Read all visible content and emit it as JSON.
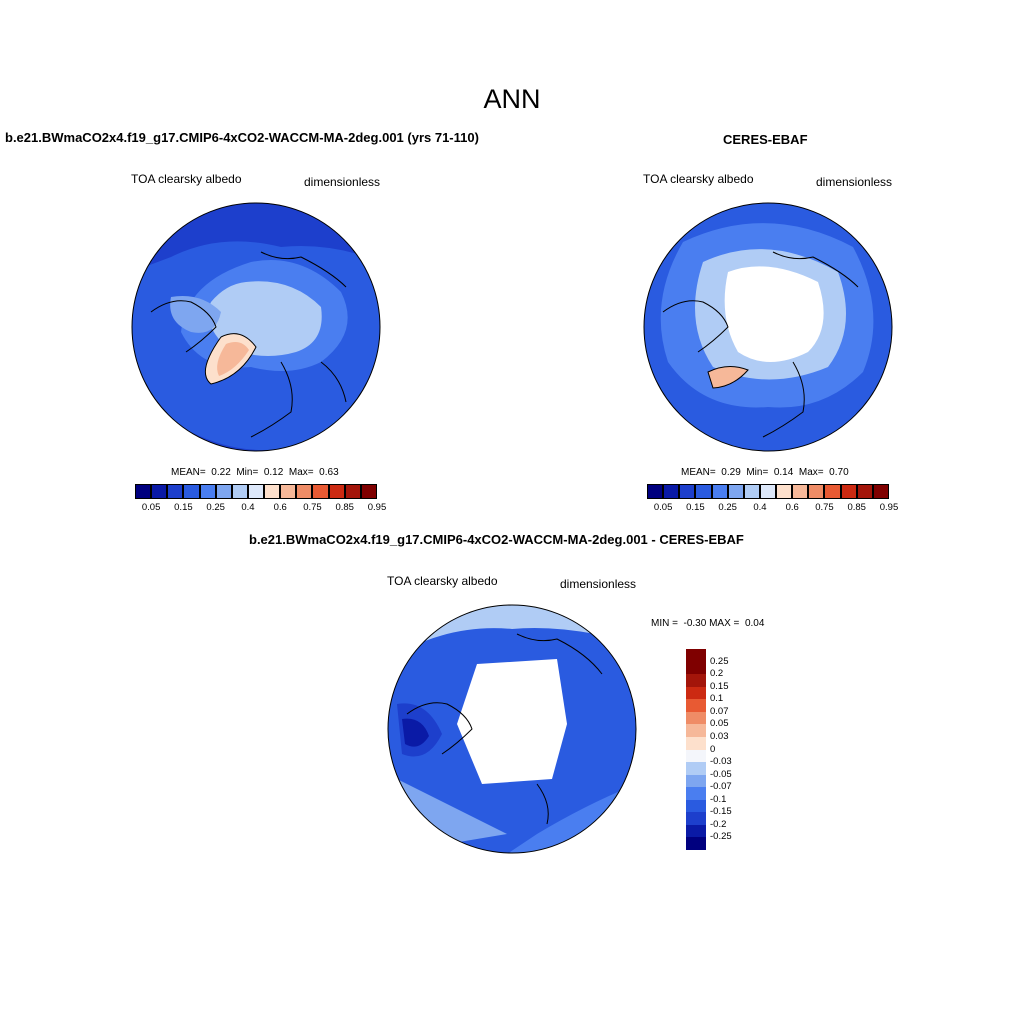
{
  "main_title": "ANN",
  "panels": [
    {
      "title": "b.e21.BWmaCO2x4.f19_g17.CMIP6-4xCO2-WACCM-MA-2deg.001 (yrs 71-110)",
      "variable": "TOA clearsky albedo",
      "units": "dimensionless",
      "stats": {
        "mean_label": "MEAN=",
        "mean": "0.22",
        "min_label": "Min=",
        "min": "0.12",
        "max_label": "Max=",
        "max": "0.63"
      }
    },
    {
      "title": "CERES-EBAF",
      "variable": "TOA clearsky albedo",
      "units": "dimensionless",
      "stats": {
        "mean_label": "MEAN=",
        "mean": "0.29",
        "min_label": "Min=",
        "min": "0.14",
        "max_label": "Max=",
        "max": "0.70"
      }
    },
    {
      "title": "b.e21.BWmaCO2x4.f19_g17.CMIP6-4xCO2-WACCM-MA-2deg.001 - CERES-EBAF",
      "variable": "TOA clearsky albedo",
      "units": "dimensionless",
      "stats": {
        "min_label": "MIN =",
        "min": "-0.30",
        "max_label": "MAX =",
        "max": "0.04"
      }
    }
  ],
  "colorbar_abs": {
    "colors": [
      "#00007f",
      "#0a1aa6",
      "#1d3fcc",
      "#2a5be0",
      "#4a7ef0",
      "#7ea6f0",
      "#b0ccf5",
      "#dde8fa",
      "#fde0cc",
      "#f6b899",
      "#ef8c66",
      "#e85a33",
      "#cc2a12",
      "#a3150a",
      "#7f0000"
    ],
    "tick_labels": [
      "0.05",
      "0.15",
      "0.25",
      "0.4",
      "0.6",
      "0.75",
      "0.85",
      "0.95"
    ]
  },
  "colorbar_diff": {
    "colors": [
      "#00007f",
      "#0a1aa6",
      "#1d3fcc",
      "#2a5be0",
      "#4a7ef0",
      "#7ea6f0",
      "#b0ccf5",
      "#f4f6fb",
      "#fde0cc",
      "#f6b899",
      "#ef8c66",
      "#e85a33",
      "#cc2a12",
      "#a3150a",
      "#7f0000"
    ],
    "tick_labels": [
      "-0.25",
      "-0.2",
      "-0.15",
      "-0.1",
      "-0.07",
      "-0.05",
      "-0.03",
      "0",
      "0.03",
      "0.05",
      "0.07",
      "0.1",
      "0.15",
      "0.2",
      "0.25"
    ]
  },
  "map_colors": {
    "land_light": "#b0ccf5",
    "ocean_mid": "#2a5be0",
    "ocean_dark": "#1d3fcc",
    "ice_peach": "#fde0cc",
    "ice_white": "#ffffff",
    "diff_light": "#dde8fa",
    "diff_dark": "#0a1aa6"
  }
}
